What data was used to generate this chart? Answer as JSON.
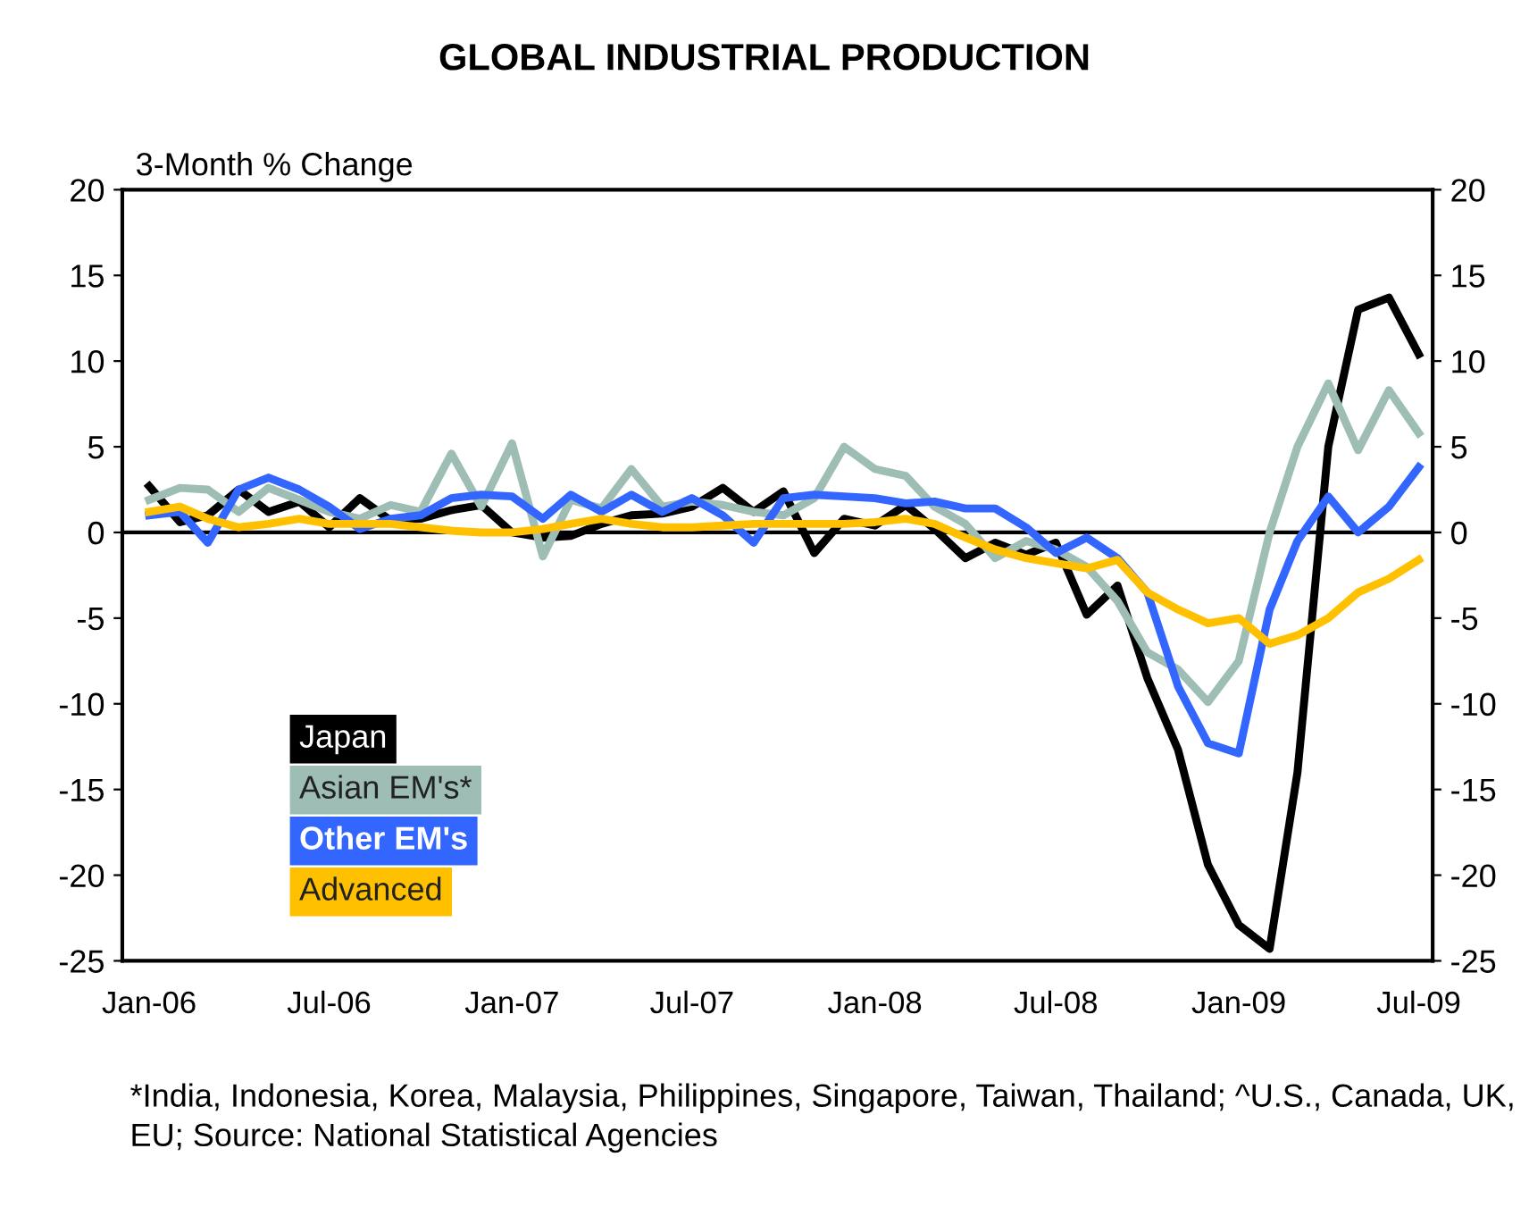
{
  "chart_data": {
    "type": "line",
    "title": "GLOBAL INDUSTRIAL PRODUCTION",
    "ylabel": "3-Month % Change",
    "x": [
      "2006-01",
      "2006-02",
      "2006-03",
      "2006-04",
      "2006-05",
      "2006-06",
      "2006-07",
      "2006-08",
      "2006-09",
      "2006-10",
      "2006-11",
      "2006-12",
      "2007-01",
      "2007-02",
      "2007-03",
      "2007-04",
      "2007-05",
      "2007-06",
      "2007-07",
      "2007-08",
      "2007-09",
      "2007-10",
      "2007-11",
      "2007-12",
      "2008-01",
      "2008-02",
      "2008-03",
      "2008-04",
      "2008-05",
      "2008-06",
      "2008-07",
      "2008-08",
      "2008-09",
      "2008-10",
      "2008-11",
      "2008-12",
      "2009-01",
      "2009-02",
      "2009-03",
      "2009-04",
      "2009-05",
      "2009-06",
      "2009-07"
    ],
    "series": [
      {
        "name": "Japan",
        "color": "#000000",
        "values": [
          2.7,
          0.6,
          1.0,
          2.5,
          1.2,
          1.8,
          0.3,
          2.0,
          0.7,
          0.8,
          1.3,
          1.6,
          0,
          -0.3,
          -0.2,
          0.5,
          1.0,
          1.1,
          1.5,
          2.6,
          1.2,
          2.4,
          -1.2,
          0.8,
          0.4,
          1.6,
          0.2,
          -1.5,
          -0.6,
          -1.3,
          -0.6,
          -4.8,
          -3.1,
          -8.5,
          -12.7,
          -19.4,
          -22.9,
          -24.3,
          -14,
          5,
          13,
          13.7,
          10.4
        ]
      },
      {
        "name": "Asian EM's*",
        "color": "#9dbdb5",
        "values": [
          1.9,
          2.6,
          2.5,
          1.2,
          2.6,
          1.9,
          1.2,
          0.8,
          1.6,
          1.2,
          4.6,
          1.5,
          5.2,
          -1.4,
          1.9,
          1.4,
          3.7,
          1.5,
          1.8,
          1.6,
          1.2,
          1.0,
          2.0,
          5.0,
          3.7,
          3.3,
          1.5,
          0.5,
          -1.5,
          -0.5,
          -1.0,
          -2.0,
          -4.0,
          -7.0,
          -8.0,
          -9.9,
          -7.5,
          0,
          5,
          8.7,
          4.8,
          8.3,
          5.8
        ]
      },
      {
        "name": "Other EM's",
        "color": "#3366ff",
        "values": [
          1.0,
          1.2,
          -0.6,
          2.5,
          3.2,
          2.5,
          1.5,
          0.2,
          0.8,
          1.0,
          2.0,
          2.2,
          2.1,
          0.8,
          2.2,
          1.2,
          2.2,
          1.2,
          2.0,
          1.0,
          -0.6,
          2.0,
          2.2,
          2.1,
          2.0,
          1.7,
          1.8,
          1.4,
          1.4,
          0.3,
          -1.2,
          -0.3,
          -1.5,
          -3.5,
          -9,
          -12.3,
          -12.9,
          -4.5,
          -0.5,
          2.1,
          0,
          1.5,
          3.8
        ]
      },
      {
        "name": "Advanced",
        "color": "#ffc000",
        "values": [
          1.2,
          1.5,
          0.8,
          0.3,
          0.5,
          0.8,
          0.5,
          0.5,
          0.5,
          0.3,
          0.1,
          0,
          0,
          0.2,
          0.5,
          0.8,
          0.5,
          0.3,
          0.3,
          0.4,
          0.5,
          0.5,
          0.5,
          0.5,
          0.6,
          0.8,
          0.5,
          -0.3,
          -1,
          -1.5,
          -1.8,
          -2.1,
          -1.6,
          -3.5,
          -4.5,
          -5.3,
          -5.0,
          -6.5,
          -6.0,
          -5.0,
          -3.5,
          -2.7,
          -1.6
        ]
      }
    ],
    "xlim": [
      "2005-12-05",
      "2009-07-15"
    ],
    "xticks": [
      {
        "value": "2006-01",
        "label": "Jan-06"
      },
      {
        "value": "2006-07",
        "label": "Jul-06"
      },
      {
        "value": "2007-01",
        "label": "Jan-07"
      },
      {
        "value": "2007-07",
        "label": "Jul-07"
      },
      {
        "value": "2008-01",
        "label": "Jan-08"
      },
      {
        "value": "2008-07",
        "label": "Jul-08"
      },
      {
        "value": "2009-01",
        "label": "Jan-09"
      },
      {
        "value": "2009-07",
        "label": "Jul-09"
      }
    ],
    "ylim": [
      -25,
      20
    ],
    "yticks": [
      -25,
      -20,
      -15,
      -10,
      -5,
      0,
      5,
      10,
      15,
      20
    ],
    "y2lim": [
      -25,
      20
    ],
    "y2ticks": [
      -25,
      -20,
      -15,
      -10,
      -5,
      0,
      5,
      10,
      15,
      20
    ],
    "ref_lines": [
      {
        "axis": "y",
        "value": 0,
        "color": "#000000"
      }
    ],
    "legend": "lower left",
    "grid": false,
    "marker": "none",
    "line_style": "solid",
    "annotations": [
      "*India, Indonesia, Korea, Malaysia, Philippines, Singapore, Taiwan, Thailand; ^U.S., Canada, UK, EU; Source: National Statistical Agencies"
    ]
  }
}
